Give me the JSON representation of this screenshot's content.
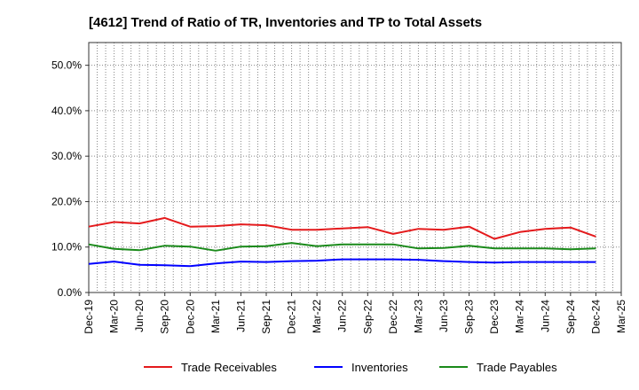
{
  "chart_data": {
    "type": "line",
    "title": "[4612]  Trend of Ratio of TR, Inventories and TP to Total Assets",
    "xlabel": "",
    "ylabel": "",
    "ylim": [
      0,
      55
    ],
    "y_ticks": [
      0,
      10,
      20,
      30,
      40,
      50
    ],
    "y_tick_labels": [
      "0.0%",
      "10.0%",
      "20.0%",
      "30.0%",
      "40.0%",
      "50.0%"
    ],
    "x": [
      "Dec-19",
      "Mar-20",
      "Jun-20",
      "Sep-20",
      "Dec-20",
      "Mar-21",
      "Jun-21",
      "Sep-21",
      "Dec-21",
      "Mar-22",
      "Jun-22",
      "Sep-22",
      "Dec-22",
      "Mar-23",
      "Jun-23",
      "Sep-23",
      "Dec-23",
      "Mar-24",
      "Jun-24",
      "Sep-24",
      "Dec-24",
      "Mar-25"
    ],
    "grid": true,
    "legend_position": "bottom",
    "series": [
      {
        "name": "Trade Receivables",
        "color": "#e41a1c",
        "values": [
          14.5,
          15.5,
          15.2,
          16.4,
          14.5,
          14.6,
          15.0,
          14.8,
          13.8,
          13.8,
          14.1,
          14.4,
          12.9,
          14.0,
          13.8,
          14.5,
          11.8,
          13.3,
          14.0,
          14.3,
          12.3,
          null
        ]
      },
      {
        "name": "Inventories",
        "color": "#0000ff",
        "values": [
          6.3,
          6.8,
          6.1,
          6.0,
          5.8,
          6.4,
          6.8,
          6.7,
          6.9,
          7.0,
          7.3,
          7.3,
          7.3,
          7.2,
          6.9,
          6.7,
          6.6,
          6.7,
          6.7,
          6.7,
          6.7,
          null
        ]
      },
      {
        "name": "Trade Payables",
        "color": "#1a8a1a",
        "values": [
          10.6,
          9.6,
          9.3,
          10.3,
          10.1,
          9.2,
          10.1,
          10.2,
          10.9,
          10.2,
          10.6,
          10.6,
          10.6,
          9.7,
          9.8,
          10.3,
          9.7,
          9.7,
          9.7,
          9.5,
          9.7,
          null
        ]
      }
    ]
  }
}
